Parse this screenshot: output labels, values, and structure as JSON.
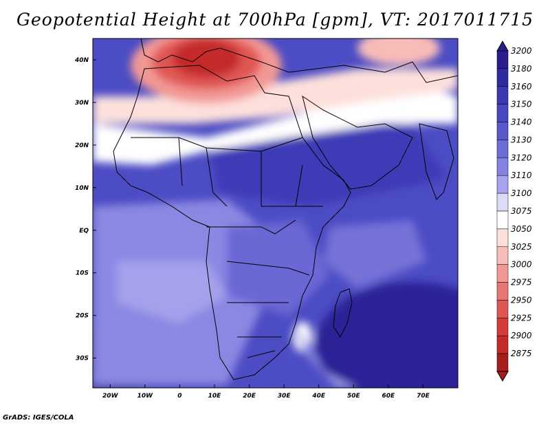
{
  "title": "Geopotential Height at 700hPa [gpm], VT: 2017011715",
  "credit": "GrADS: IGES/COLA",
  "map": {
    "lon_range": [
      -25,
      80
    ],
    "lat_range": [
      -37,
      45
    ],
    "x_ticks": [
      {
        "lon": -20,
        "label": "20W"
      },
      {
        "lon": -10,
        "label": "10W"
      },
      {
        "lon": 0,
        "label": "0"
      },
      {
        "lon": 10,
        "label": "10E"
      },
      {
        "lon": 20,
        "label": "20E"
      },
      {
        "lon": 30,
        "label": "30E"
      },
      {
        "lon": 40,
        "label": "40E"
      },
      {
        "lon": 50,
        "label": "50E"
      },
      {
        "lon": 60,
        "label": "60E"
      },
      {
        "lon": 70,
        "label": "70E"
      }
    ],
    "y_ticks": [
      {
        "lat": 40,
        "label": "40N"
      },
      {
        "lat": 30,
        "label": "30N"
      },
      {
        "lat": 20,
        "label": "20N"
      },
      {
        "lat": 10,
        "label": "10N"
      },
      {
        "lat": 0,
        "label": "EQ"
      },
      {
        "lat": -10,
        "label": "10S"
      },
      {
        "lat": -20,
        "label": "20S"
      },
      {
        "lat": -30,
        "label": "30S"
      }
    ]
  },
  "colorbar": {
    "levels": [
      {
        "label": "3200",
        "color": "#2a1e8c"
      },
      {
        "label": "3180",
        "color": "#2f2aa0"
      },
      {
        "label": "3160",
        "color": "#3a38b4"
      },
      {
        "label": "3150",
        "color": "#4848c2"
      },
      {
        "label": "3140",
        "color": "#5a58cc"
      },
      {
        "label": "3130",
        "color": "#6e6cd6"
      },
      {
        "label": "3120",
        "color": "#8482e0"
      },
      {
        "label": "3110",
        "color": "#a6a4ec"
      },
      {
        "label": "3100",
        "color": "#dcdcf8"
      },
      {
        "label": "3075",
        "color": "#ffffff"
      },
      {
        "label": "3050",
        "color": "#fde0dc"
      },
      {
        "label": "3025",
        "color": "#f8bcb8"
      },
      {
        "label": "3000",
        "color": "#f29894"
      },
      {
        "label": "2975",
        "color": "#e87672"
      },
      {
        "label": "2950",
        "color": "#e05654"
      },
      {
        "label": "2925",
        "color": "#d63a3a"
      },
      {
        "label": "2900",
        "color": "#c42a2a"
      },
      {
        "label": "2875",
        "color": "#a81c1c"
      }
    ]
  }
}
